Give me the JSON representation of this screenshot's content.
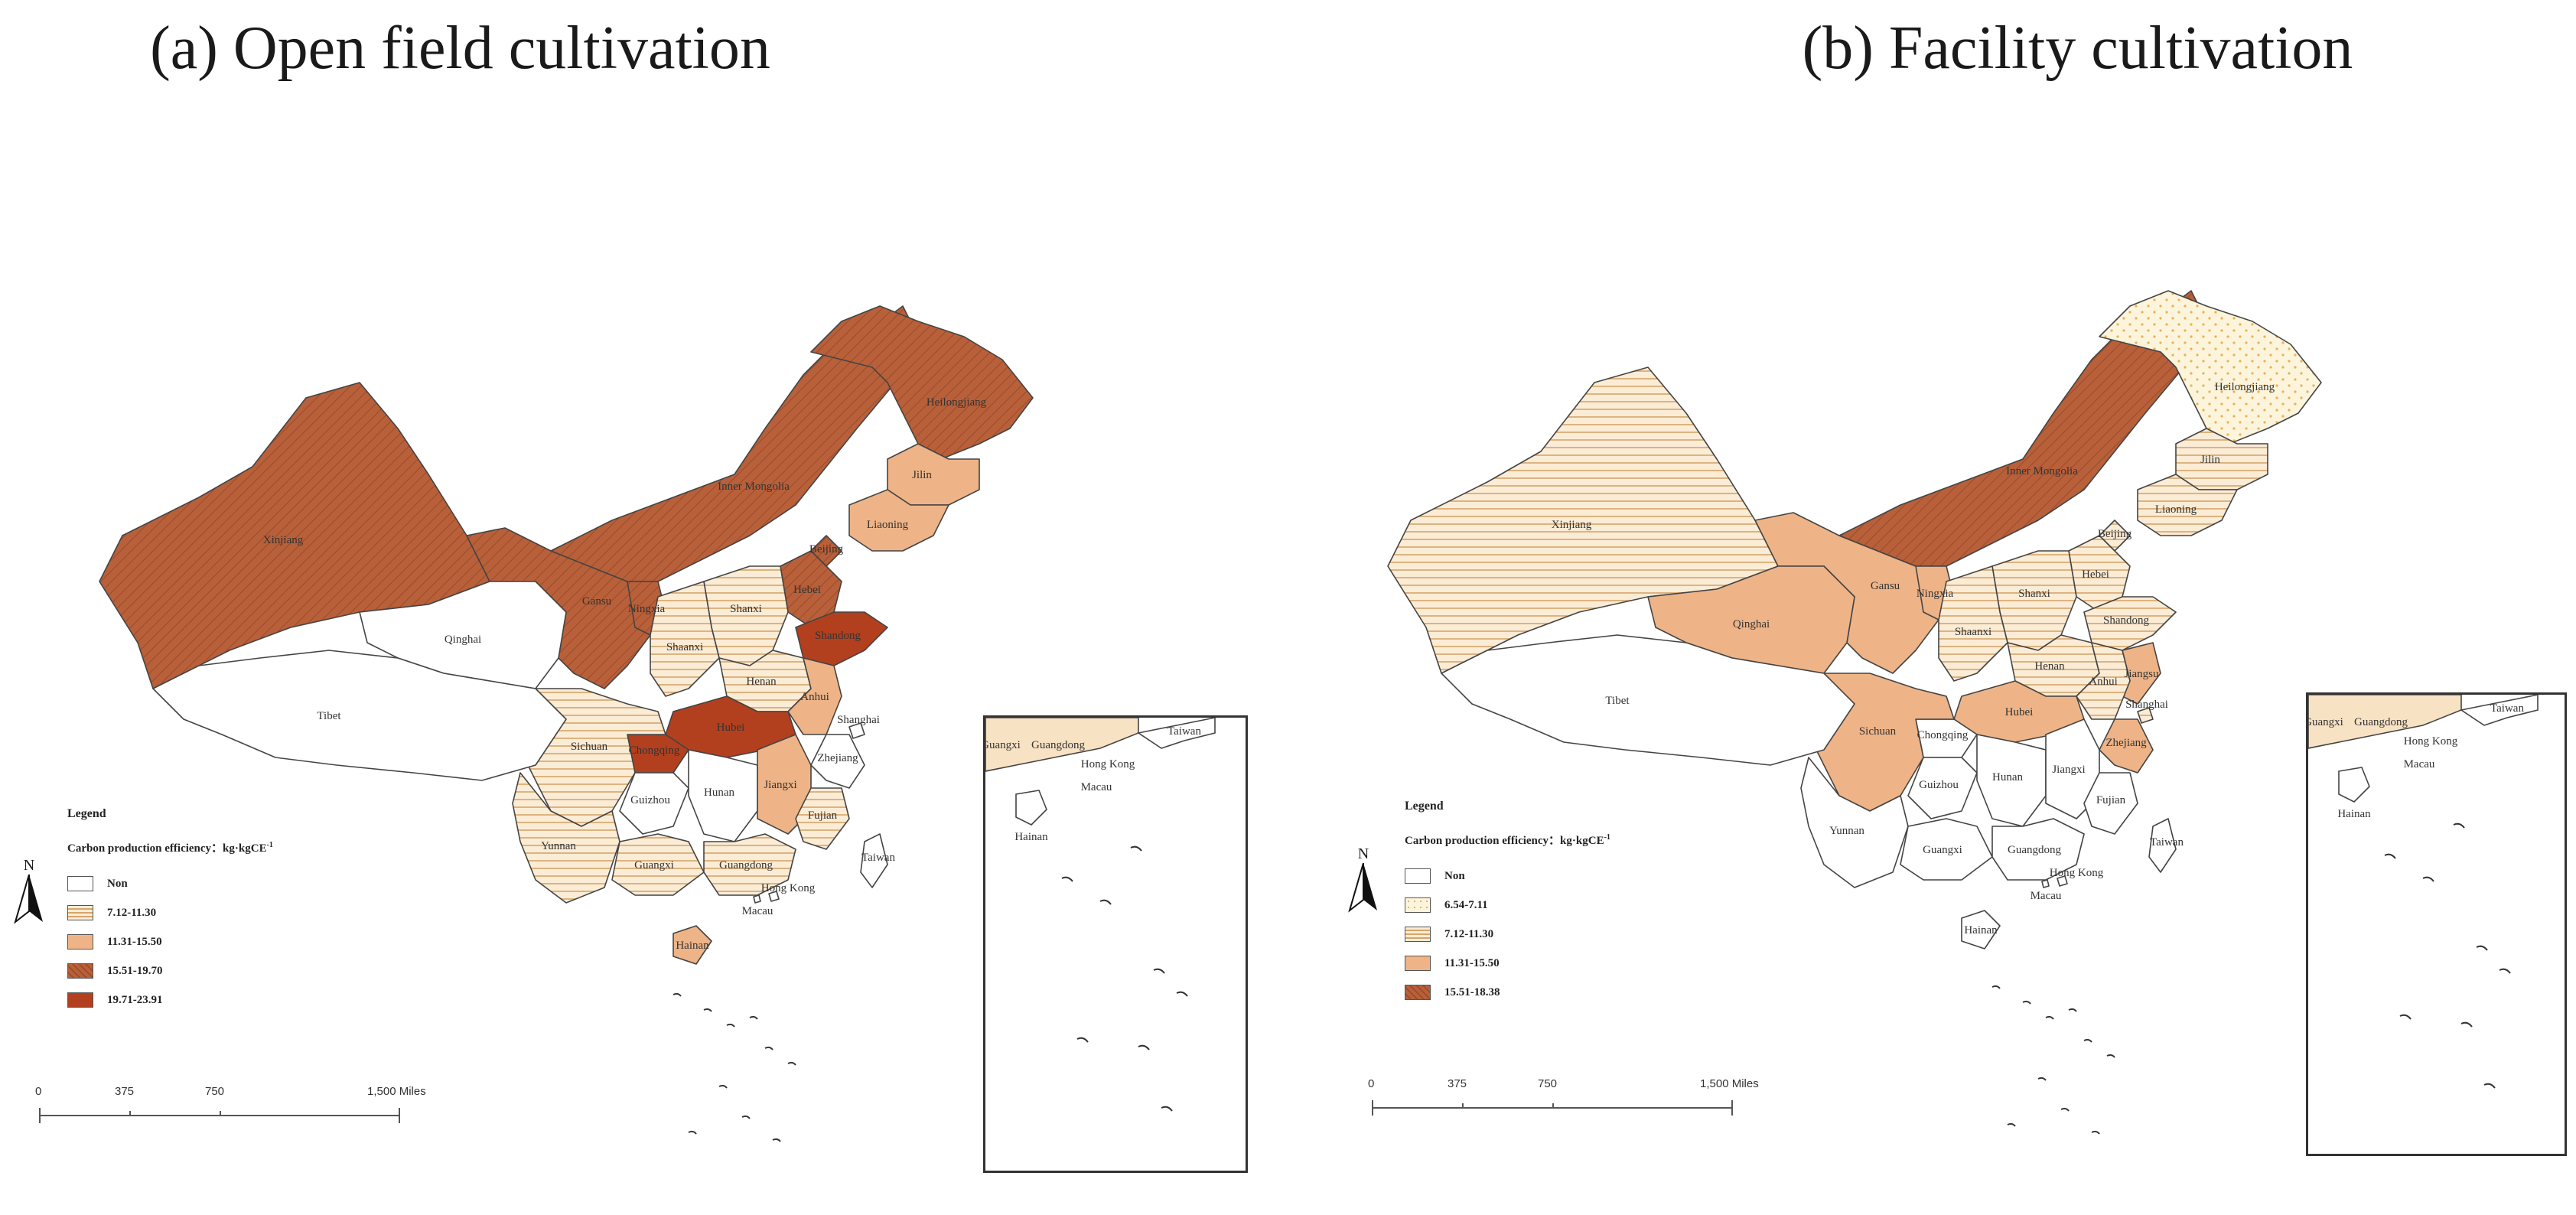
{
  "panels": [
    {
      "id": "a",
      "title": "(a) Open field cultivation",
      "legend": {
        "title": "Legend",
        "subtitle": "Carbon production efficiency：kg·kgCE",
        "subtitle_sup": "-1",
        "items": [
          {
            "label": "Non",
            "color": "#ffffff"
          },
          {
            "label": "7.12-11.30",
            "color": "#f8e2c4"
          },
          {
            "label": "11.31-15.50",
            "color": "#eeb487"
          },
          {
            "label": "15.51-19.70",
            "color": "#b8603a"
          },
          {
            "label": "19.71-23.91",
            "color": "#b2401f"
          }
        ]
      },
      "north_label": "N",
      "scale": {
        "ticks": [
          "0",
          "375",
          "750",
          "1,500 Miles"
        ]
      },
      "provinces": [
        {
          "name": "Xinjiang",
          "class": 3
        },
        {
          "name": "Gansu",
          "class": 3
        },
        {
          "name": "Inner Mongolia",
          "class": 3
        },
        {
          "name": "Heilongjiang",
          "class": 3
        },
        {
          "name": "Jilin",
          "class": 2
        },
        {
          "name": "Liaoning",
          "class": 2
        },
        {
          "name": "Beijing",
          "class": 3
        },
        {
          "name": "Hebei",
          "class": 3
        },
        {
          "name": "Ningxia",
          "class": 3
        },
        {
          "name": "Shanxi",
          "class": 1
        },
        {
          "name": "Shandong",
          "class": 4
        },
        {
          "name": "Shaanxi",
          "class": 1
        },
        {
          "name": "Henan",
          "class": 1
        },
        {
          "name": "Anhui",
          "class": 2
        },
        {
          "name": "Hubei",
          "class": 4
        },
        {
          "name": "Chongqing",
          "class": 4
        },
        {
          "name": "Sichuan",
          "class": 1
        },
        {
          "name": "Guizhou",
          "class": 0
        },
        {
          "name": "Hunan",
          "class": 0
        },
        {
          "name": "Jiangxi",
          "class": 2
        },
        {
          "name": "Zhejiang",
          "class": 0
        },
        {
          "name": "Fujian",
          "class": 1
        },
        {
          "name": "Yunnan",
          "class": 1
        },
        {
          "name": "Guangxi",
          "class": 1
        },
        {
          "name": "Guangdong",
          "class": 1
        },
        {
          "name": "Hong Kong",
          "class": 0
        },
        {
          "name": "Macau",
          "class": 0
        },
        {
          "name": "Taiwan",
          "class": 0
        },
        {
          "name": "Hainan",
          "class": 2
        },
        {
          "name": "Qinghai",
          "class": 0
        },
        {
          "name": "Tibet",
          "class": 0
        },
        {
          "name": "Shanghai",
          "class": 0
        }
      ],
      "inset_labels": [
        "Guangxi",
        "Guangdong",
        "Taiwan",
        "Hong Kong",
        "Macau",
        "Hainan"
      ]
    },
    {
      "id": "b",
      "title": "(b) Facility cultivation",
      "legend": {
        "title": "Legend",
        "subtitle": "Carbon production efficiency：kg·kgCE",
        "subtitle_sup": "-1",
        "items": [
          {
            "label": "Non",
            "color": "#ffffff"
          },
          {
            "label": "6.54-7.11",
            "color": "#fdf4dc"
          },
          {
            "label": "7.12-11.30",
            "color": "#f8e2c4"
          },
          {
            "label": "11.31-15.50",
            "color": "#eeb487"
          },
          {
            "label": "15.51-18.38",
            "color": "#b8603a"
          }
        ]
      },
      "north_label": "N",
      "scale": {
        "ticks": [
          "0",
          "375",
          "750",
          "1,500 Miles"
        ]
      },
      "provinces": [
        {
          "name": "Xinjiang",
          "class": 2
        },
        {
          "name": "Gansu",
          "class": 3
        },
        {
          "name": "Qinghai",
          "class": 3
        },
        {
          "name": "Inner Mongolia",
          "class": 4
        },
        {
          "name": "Heilongjiang",
          "class": 1
        },
        {
          "name": "Jilin",
          "class": 2
        },
        {
          "name": "Liaoning",
          "class": 2
        },
        {
          "name": "Beijing",
          "class": 2
        },
        {
          "name": "Hebei",
          "class": 2
        },
        {
          "name": "Ningxia",
          "class": 3
        },
        {
          "name": "Shanxi",
          "class": 2
        },
        {
          "name": "Shandong",
          "class": 2
        },
        {
          "name": "Shaanxi",
          "class": 2
        },
        {
          "name": "Henan",
          "class": 2
        },
        {
          "name": "Jiangsu",
          "class": 3
        },
        {
          "name": "Anhui",
          "class": 2
        },
        {
          "name": "Hubei",
          "class": 3
        },
        {
          "name": "Chongqing",
          "class": 0
        },
        {
          "name": "Sichuan",
          "class": 3
        },
        {
          "name": "Guizhou",
          "class": 0
        },
        {
          "name": "Hunan",
          "class": 0
        },
        {
          "name": "Jiangxi",
          "class": 0
        },
        {
          "name": "Zhejiang",
          "class": 3
        },
        {
          "name": "Shanghai",
          "class": 2
        },
        {
          "name": "Fujian",
          "class": 0
        },
        {
          "name": "Yunnan",
          "class": 0
        },
        {
          "name": "Guangxi",
          "class": 0
        },
        {
          "name": "Guangdong",
          "class": 0
        },
        {
          "name": "Hong Kong",
          "class": 0
        },
        {
          "name": "Macau",
          "class": 0
        },
        {
          "name": "Taiwan",
          "class": 0
        },
        {
          "name": "Hainan",
          "class": 0
        },
        {
          "name": "Tibet",
          "class": 0
        }
      ],
      "inset_labels": [
        "Guangxi",
        "Guangdong",
        "Taiwan",
        "Hong Kong",
        "Macau",
        "Hainan"
      ]
    }
  ]
}
